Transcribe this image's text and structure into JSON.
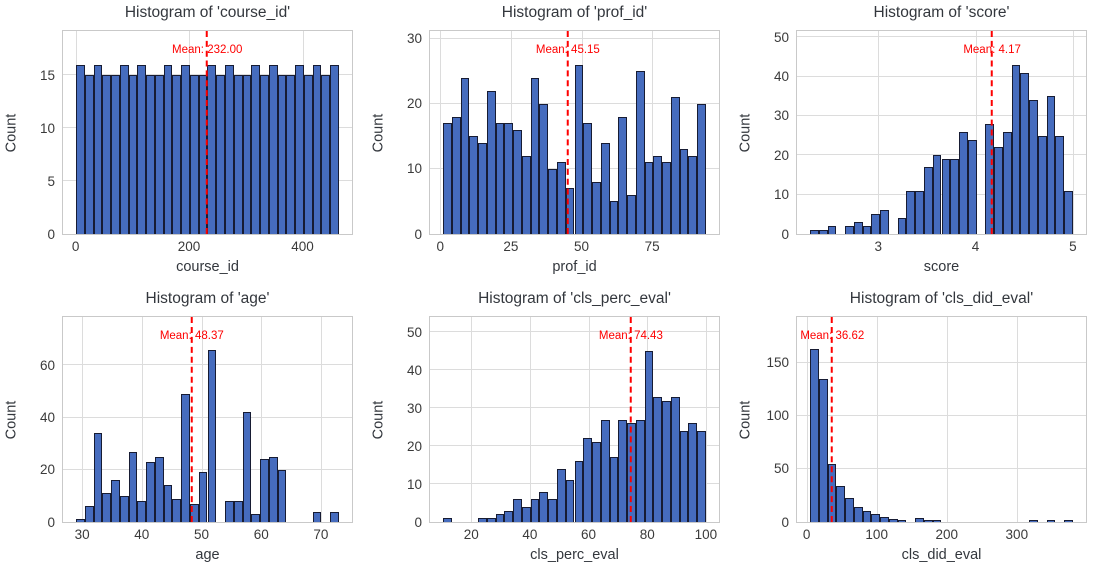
{
  "figure": {
    "count_axis_label": "Count",
    "colors": {
      "bar_fill": "#466cbe",
      "bar_edge": "#171c33",
      "mean_line": "#fe0000",
      "grid_line": "#dcdcdc",
      "spine": "#c9c9c9",
      "title_text": "#33373d",
      "tick_text": "#3a3a3a"
    }
  },
  "chart_data": [
    {
      "type": "bar",
      "title": "Histogram of 'course_id'",
      "xlabel": "course_id",
      "ylabel": "Count",
      "mean": 232.0,
      "mean_label": "Mean: 232.00",
      "bin_start": 1,
      "bin_width": 15.433,
      "values": [
        16,
        15,
        16,
        15,
        15,
        16,
        15,
        16,
        15,
        15,
        16,
        15,
        16,
        15,
        15,
        16,
        15,
        16,
        15,
        15,
        16,
        15,
        16,
        15,
        15,
        16,
        15,
        16,
        15,
        16
      ],
      "xlim": [
        -22.2,
        487.2
      ],
      "ylim": [
        0,
        19.2
      ],
      "x_ticks": [
        0,
        200,
        400
      ],
      "y_ticks": [
        0,
        5,
        10,
        15
      ],
      "grid": true,
      "legend": null
    },
    {
      "type": "bar",
      "title": "Histogram of 'prof_id'",
      "xlabel": "prof_id",
      "ylabel": "Count",
      "mean": 45.15,
      "mean_label": "Mean: 45.15",
      "bin_start": 1,
      "bin_width": 3.1,
      "values": [
        17,
        18,
        24,
        15,
        14,
        22,
        17,
        17,
        16,
        12,
        24,
        20,
        10,
        11,
        7,
        26,
        17,
        8,
        14,
        5,
        18,
        6,
        25,
        11,
        12,
        11,
        21,
        13,
        12,
        20
      ],
      "xlim": [
        -3.65,
        98.65
      ],
      "ylim": [
        0,
        31.2
      ],
      "x_ticks": [
        0,
        25,
        50,
        75
      ],
      "y_ticks": [
        0,
        10,
        20,
        30
      ],
      "grid": true,
      "legend": null
    },
    {
      "type": "bar",
      "title": "Histogram of 'score'",
      "xlabel": "score",
      "ylabel": "Count",
      "mean": 4.17,
      "mean_label": "Mean: 4.17",
      "bin_start": 2.3,
      "bin_width": 0.09,
      "values": [
        1,
        1,
        2,
        0,
        2,
        3,
        2,
        5,
        6,
        0,
        4,
        11,
        11,
        17,
        20,
        19,
        19,
        26,
        24,
        0,
        28,
        22,
        26,
        43,
        41,
        34,
        25,
        35,
        25,
        11
      ],
      "xlim": [
        2.165,
        5.135
      ],
      "ylim": [
        0,
        51.6
      ],
      "x_ticks": [
        3,
        4,
        5
      ],
      "y_ticks": [
        0,
        10,
        20,
        30,
        40,
        50
      ],
      "grid": true,
      "legend": null
    },
    {
      "type": "bar",
      "title": "Histogram of 'age'",
      "xlabel": "age",
      "ylabel": "Count",
      "mean": 48.37,
      "mean_label": "Mean: 48.37",
      "bin_start": 29,
      "bin_width": 1.4667,
      "values": [
        1,
        6,
        34,
        11,
        16,
        10,
        27,
        8,
        23,
        25,
        14,
        9,
        49,
        7,
        19,
        66,
        0,
        8,
        8,
        42,
        3,
        24,
        25,
        20,
        0,
        0,
        0,
        4,
        0,
        4
      ],
      "xlim": [
        26.8,
        75.2
      ],
      "ylim": [
        0,
        78.5
      ],
      "x_ticks": [
        30,
        40,
        50,
        60,
        70
      ],
      "y_ticks": [
        0,
        20,
        40,
        60
      ],
      "grid": true,
      "legend": null
    },
    {
      "type": "bar",
      "title": "Histogram of 'cls_perc_eval'",
      "xlabel": "cls_perc_eval",
      "ylabel": "Count",
      "mean": 74.43,
      "mean_label": "Mean: 74.43",
      "bin_start": 10.4,
      "bin_width": 2.9867,
      "values": [
        1,
        0,
        0,
        0,
        1,
        1,
        2,
        3,
        6,
        4,
        6,
        8,
        6,
        14,
        11,
        16,
        22,
        21,
        27,
        17,
        27,
        26,
        27,
        45,
        33,
        32,
        33,
        24,
        26,
        24
      ],
      "xlim": [
        5.92,
        104.48
      ],
      "ylim": [
        0,
        54
      ],
      "x_ticks": [
        20,
        40,
        60,
        80,
        100
      ],
      "y_ticks": [
        0,
        10,
        20,
        30,
        40,
        50
      ],
      "grid": true,
      "legend": null
    },
    {
      "type": "bar",
      "title": "Histogram of 'cls_did_eval'",
      "xlabel": "cls_did_eval",
      "ylabel": "Count",
      "mean": 36.62,
      "mean_label": "Mean: 36.62",
      "bin_start": 5,
      "bin_width": 12.5,
      "values": [
        163,
        135,
        55,
        34,
        23,
        14,
        10,
        8,
        5,
        3,
        1,
        0,
        4,
        2,
        2,
        0,
        0,
        0,
        0,
        0,
        0,
        0,
        0,
        0,
        0,
        1,
        0,
        1,
        0,
        1
      ],
      "xlim": [
        -13.75,
        398.75
      ],
      "ylim": [
        0,
        193
      ],
      "x_ticks": [
        0,
        100,
        200,
        300
      ],
      "y_ticks": [
        0,
        50,
        100,
        150
      ],
      "grid": true,
      "legend": null
    }
  ]
}
